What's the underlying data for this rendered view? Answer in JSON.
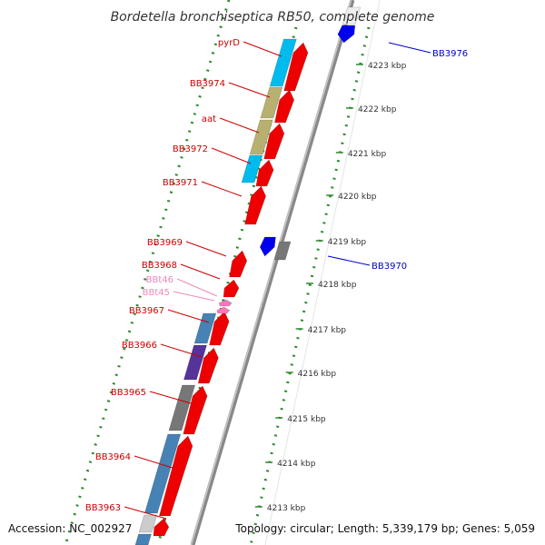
{
  "title": "Bordetella bronchiseptica RB50, complete genome",
  "footer": {
    "accession": "Accession: NC_002927",
    "topology": "Topology: circular; Length: 5,339,179 bp; Genes: 5,059"
  },
  "scale": {
    "labels": [
      "4223 kbp",
      "4222 kbp",
      "4221 kbp",
      "4220 kbp",
      "4219 kbp",
      "4218 kbp",
      "4217 kbp",
      "4216 kbp",
      "4215 kbp",
      "4214 kbp",
      "4213 kbp"
    ]
  },
  "colors": {
    "backbone": "#888888",
    "guide_dots": "#2e8b2e",
    "cds_red": "#ee0000",
    "label_red": "#cc0000",
    "label_blue": "#0000cc",
    "label_pink": "#ee88bb",
    "rna_pink": "#ff77bb",
    "cyan": "#00bbee",
    "khaki": "#b7b070",
    "steelblue": "#4682b4",
    "purple": "#553399",
    "gray": "#777777",
    "blue": "#0000ee",
    "lightgray": "#cccccc"
  },
  "genes": [
    {
      "id": "pyrD",
      "label": "pyrD",
      "color": "label_red"
    },
    {
      "id": "BB3974",
      "label": "BB3974",
      "color": "label_red"
    },
    {
      "id": "aat",
      "label": "aat",
      "color": "label_red"
    },
    {
      "id": "BB3972",
      "label": "BB3972",
      "color": "label_red"
    },
    {
      "id": "BB3971",
      "label": "BB3971",
      "color": "label_red"
    },
    {
      "id": "BB3969",
      "label": "BB3969",
      "color": "label_red"
    },
    {
      "id": "BB3968",
      "label": "BB3968",
      "color": "label_red"
    },
    {
      "id": "BBt46",
      "label": "BBt46",
      "color": "label_pink"
    },
    {
      "id": "BBt45",
      "label": "BBt45",
      "color": "label_pink"
    },
    {
      "id": "BB3967",
      "label": "BB3967",
      "color": "label_red"
    },
    {
      "id": "BB3966",
      "label": "BB3966",
      "color": "label_red"
    },
    {
      "id": "BB3965",
      "label": "BB3965",
      "color": "label_red"
    },
    {
      "id": "BB3964",
      "label": "BB3964",
      "color": "label_red"
    },
    {
      "id": "BB3963",
      "label": "BB3963",
      "color": "label_red"
    },
    {
      "id": "BB3976",
      "label": "BB3976",
      "color": "label_blue"
    },
    {
      "id": "BB3970",
      "label": "BB3970",
      "color": "label_blue"
    }
  ]
}
